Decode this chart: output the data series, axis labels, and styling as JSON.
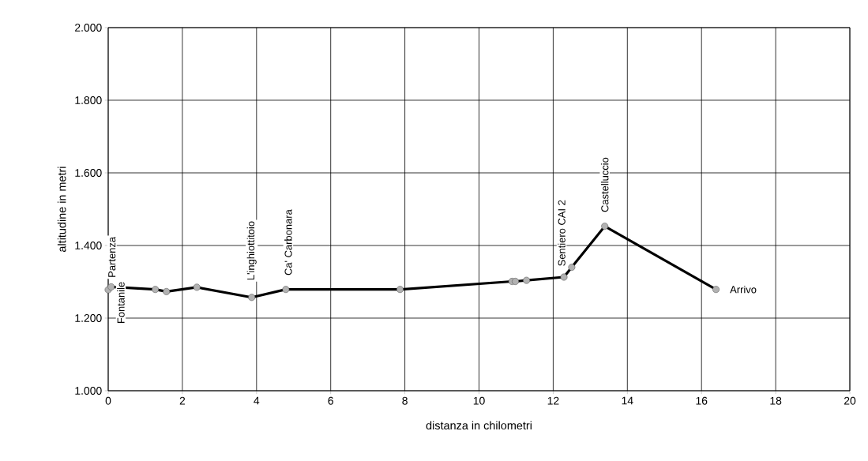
{
  "chart_data": {
    "type": "line",
    "xlabel": "distanza in chilometri",
    "ylabel": "altitudine  in metri",
    "x": [
      0,
      0.08,
      1.27,
      1.57,
      2.39,
      3.87,
      4.79,
      7.87,
      10.89,
      10.98,
      11.28,
      12.29,
      12.5,
      13.39,
      16.39
    ],
    "values": [
      1278,
      1286,
      1279,
      1273,
      1285,
      1257,
      1279,
      1279,
      1301,
      1301,
      1304,
      1313,
      1340,
      1453,
      1279
    ],
    "color": "#000000",
    "marker": "circle",
    "line_style": "solid",
    "grid": true,
    "xlim": [
      0,
      20
    ],
    "xticks": [
      0,
      2,
      4,
      6,
      8,
      10,
      12,
      14,
      16,
      18,
      20
    ],
    "ylim": [
      1000,
      2000
    ],
    "yticks": [
      {
        "value": 1000,
        "label": "1.000"
      },
      {
        "value": 1200,
        "label": "1.200"
      },
      {
        "value": 1400,
        "label": "1.400"
      },
      {
        "value": 1600,
        "label": "1.600"
      },
      {
        "value": 1800,
        "label": "1.800"
      },
      {
        "value": 2000,
        "label": "2.000"
      }
    ],
    "annotations": [
      {
        "text": "Partenza",
        "x": 0.08,
        "y": 1286
      },
      {
        "text": "Fontanile",
        "x": 0,
        "y": 1278
      },
      {
        "text": "L'inghiottitoio",
        "x": 3.87,
        "y": 1257
      },
      {
        "text": "Ca' Carbonara",
        "x": 4.79,
        "y": 1279
      },
      {
        "text": "Sentiero CAI 2",
        "x": 12.29,
        "y": 1313
      },
      {
        "text": "Castelluccio",
        "x": 13.39,
        "y": 1453
      },
      {
        "text": "Arrivo",
        "x": 16.39,
        "y": 1279
      }
    ]
  }
}
